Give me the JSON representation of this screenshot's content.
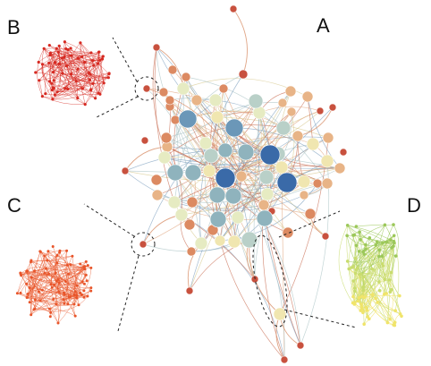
{
  "figure": {
    "panel_labels": {
      "a": "A",
      "b": "B",
      "c": "C",
      "d": "D"
    },
    "panels": {
      "A": {
        "description_colors": [
          "#3a6aa8",
          "#6b97b8",
          "#8fb3bd",
          "#b9d0c8",
          "#e6ebc2",
          "#f0e6b0",
          "#e8b487",
          "#dc8a62",
          "#c8513e"
        ]
      },
      "B": {
        "color": "#d62a22"
      },
      "C": {
        "color": "#e8552a"
      },
      "D": {
        "colors": [
          "#9cc85a",
          "#c9dc6e",
          "#f0e46a"
        ]
      }
    },
    "callouts": [
      {
        "from": "A",
        "to": "B",
        "style": "dashed"
      },
      {
        "from": "A",
        "to": "C",
        "style": "dashed"
      },
      {
        "from": "A",
        "to": "D",
        "style": "dashed"
      }
    ]
  }
}
